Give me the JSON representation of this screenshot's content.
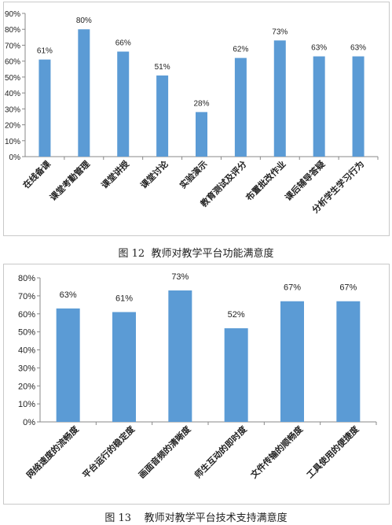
{
  "chart_data": [
    {
      "type": "bar",
      "categories": [
        "在线备课",
        "课堂考勤管理",
        "课堂讲授",
        "课堂讨论",
        "实验演示",
        "教育测试及评分",
        "布置批改作业",
        "课后辅导答疑",
        "分析学生学习行为"
      ],
      "values": [
        61,
        80,
        66,
        51,
        28,
        62,
        73,
        63,
        63
      ],
      "value_labels": [
        "61%",
        "80%",
        "66%",
        "51%",
        "28%",
        "62%",
        "73%",
        "63%",
        "63%"
      ],
      "ylim": [
        0,
        90
      ],
      "y_ticks": [
        "0%",
        "10%",
        "20%",
        "30%",
        "40%",
        "50%",
        "60%",
        "70%",
        "80%",
        "90%"
      ],
      "grid": false,
      "bar_color": "#5b9bd5",
      "caption_label": "图 12",
      "caption_text": "教师对教学平台功能满意度"
    },
    {
      "type": "bar",
      "categories": [
        "网络速度的流畅度",
        "平台运行的稳定度",
        "画面音频的清晰度",
        "师生互动的即时度",
        "文件传输的顺畅度",
        "工具使用的便捷度"
      ],
      "values": [
        63,
        61,
        73,
        52,
        67,
        67
      ],
      "value_labels": [
        "63%",
        "61%",
        "73%",
        "52%",
        "67%",
        "67%"
      ],
      "ylim": [
        0,
        80
      ],
      "y_ticks": [
        "0%",
        "10%",
        "20%",
        "30%",
        "40%",
        "50%",
        "60%",
        "70%",
        "80%"
      ],
      "grid": false,
      "bar_color": "#5b9bd5",
      "caption_label": "图 13",
      "caption_text": "教师对教学平台技术支持满意度"
    }
  ]
}
